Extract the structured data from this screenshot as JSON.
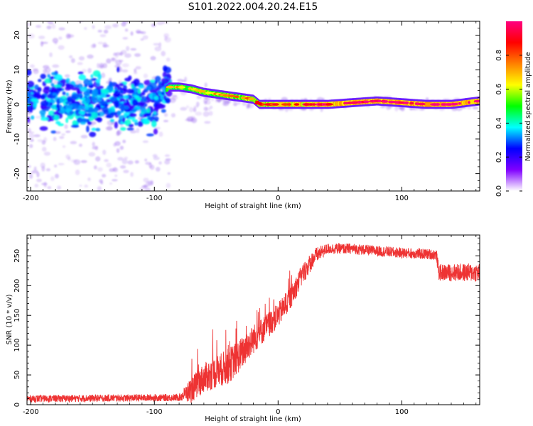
{
  "title": "S101.2022.004.20.24.E15",
  "chart_data": [
    {
      "type": "heatmap",
      "xlabel": "Height of straight line (km)",
      "ylabel": "Frequency (Hz)",
      "xlim": [
        -203,
        163
      ],
      "ylim": [
        -25,
        24
      ],
      "xticks": [
        -200,
        -100,
        0,
        100
      ],
      "yticks": [
        -20,
        -10,
        0,
        10,
        20
      ],
      "colorbar": {
        "label": "Normalized spectral amplitude",
        "ticks": [
          0.0,
          0.2,
          0.4,
          0.6,
          0.8
        ],
        "tick_labels": [
          "0.0",
          "0.2",
          "0.4",
          "0.6",
          "0.8"
        ],
        "range": [
          0,
          1
        ],
        "colors": [
          "#ffffff",
          "#8000ff",
          "#0000ff",
          "#00ffff",
          "#00ff00",
          "#ffff00",
          "#ff8000",
          "#ff0000",
          "#ff0080"
        ]
      },
      "ridge": [
        {
          "x": -200,
          "f": 1.0,
          "a": 0.35
        },
        {
          "x": -180,
          "f": 1.5,
          "a": 0.35
        },
        {
          "x": -160,
          "f": 0.5,
          "a": 0.35
        },
        {
          "x": -140,
          "f": 1.0,
          "a": 0.38
        },
        {
          "x": -120,
          "f": 0.0,
          "a": 0.4
        },
        {
          "x": -100,
          "f": 0.5,
          "a": 0.42
        },
        {
          "x": -88,
          "f": 5.0,
          "a": 0.55
        },
        {
          "x": -80,
          "f": 5.0,
          "a": 0.6
        },
        {
          "x": -70,
          "f": 4.5,
          "a": 0.62
        },
        {
          "x": -60,
          "f": 3.5,
          "a": 0.62
        },
        {
          "x": -50,
          "f": 3.0,
          "a": 0.62
        },
        {
          "x": -40,
          "f": 2.5,
          "a": 0.65
        },
        {
          "x": -30,
          "f": 2.0,
          "a": 0.68
        },
        {
          "x": -20,
          "f": 1.5,
          "a": 0.7
        },
        {
          "x": -15,
          "f": 0.0,
          "a": 0.75
        },
        {
          "x": 0,
          "f": 0.0,
          "a": 0.8
        },
        {
          "x": 20,
          "f": 0.0,
          "a": 0.85
        },
        {
          "x": 40,
          "f": 0.0,
          "a": 0.88
        },
        {
          "x": 60,
          "f": 0.5,
          "a": 0.9
        },
        {
          "x": 80,
          "f": 1.0,
          "a": 0.92
        },
        {
          "x": 100,
          "f": 0.5,
          "a": 0.93
        },
        {
          "x": 120,
          "f": 0.0,
          "a": 0.95
        },
        {
          "x": 140,
          "f": 0.0,
          "a": 0.95
        },
        {
          "x": 163,
          "f": 1.0,
          "a": 0.9
        }
      ]
    },
    {
      "type": "line",
      "xlabel": "Height of straight line (km)",
      "ylabel": "SNR (10 * v/v)",
      "xlim": [
        -203,
        163
      ],
      "ylim": [
        0,
        285
      ],
      "xticks": [
        -200,
        -100,
        0,
        100
      ],
      "yticks": [
        0,
        50,
        100,
        150,
        200,
        250
      ],
      "series": [
        {
          "name": "SNR",
          "color": "#ee3333",
          "trend": [
            {
              "x": -203,
              "y": 10
            },
            {
              "x": -80,
              "y": 12
            },
            {
              "x": -70,
              "y": 25
            },
            {
              "x": -60,
              "y": 45
            },
            {
              "x": -50,
              "y": 55
            },
            {
              "x": -40,
              "y": 65
            },
            {
              "x": -30,
              "y": 85
            },
            {
              "x": -20,
              "y": 110
            },
            {
              "x": -10,
              "y": 130
            },
            {
              "x": 0,
              "y": 150
            },
            {
              "x": 10,
              "y": 180
            },
            {
              "x": 20,
              "y": 220
            },
            {
              "x": 30,
              "y": 250
            },
            {
              "x": 40,
              "y": 262
            },
            {
              "x": 60,
              "y": 262
            },
            {
              "x": 80,
              "y": 258
            },
            {
              "x": 100,
              "y": 255
            },
            {
              "x": 128,
              "y": 252
            },
            {
              "x": 130,
              "y": 222
            },
            {
              "x": 163,
              "y": 222
            }
          ],
          "noise": [
            {
              "x": -203,
              "amp": 6
            },
            {
              "x": -80,
              "amp": 6
            },
            {
              "x": -70,
              "amp": 22
            },
            {
              "x": -40,
              "amp": 30
            },
            {
              "x": -10,
              "amp": 22
            },
            {
              "x": 20,
              "amp": 18
            },
            {
              "x": 40,
              "amp": 9
            },
            {
              "x": 128,
              "amp": 9
            },
            {
              "x": 130,
              "amp": 14
            },
            {
              "x": 163,
              "amp": 16
            }
          ]
        }
      ]
    }
  ]
}
